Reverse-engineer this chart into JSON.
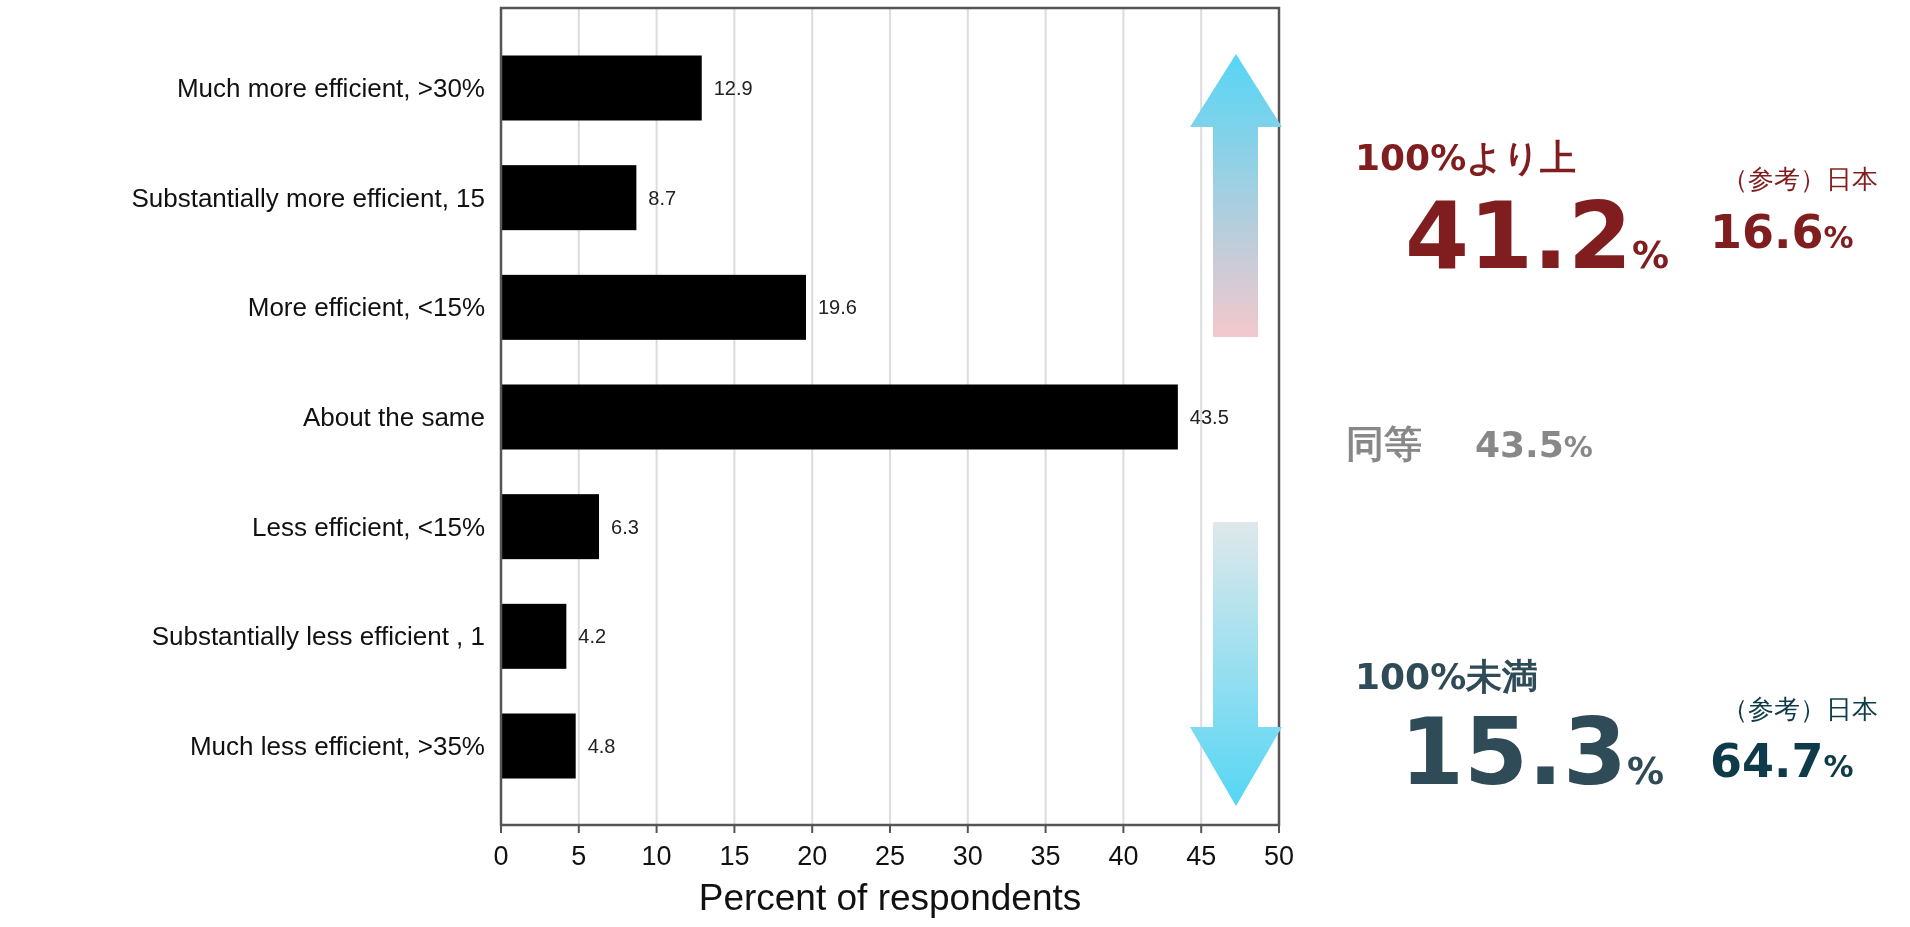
{
  "chart_data": {
    "type": "bar",
    "orientation": "horizontal",
    "categories": [
      "Much more efficient, >30%",
      "Substantially more efficient, 15",
      "More efficient, <15%",
      "About the same",
      "Less efficient, <15%",
      "Substantially less efficient , 1",
      "Much less efficient, >35%"
    ],
    "values": [
      12.9,
      8.7,
      19.6,
      43.5,
      6.3,
      4.2,
      4.8
    ],
    "color": "#000000",
    "xlim": [
      0,
      50
    ],
    "xticks": [
      0,
      5,
      10,
      15,
      20,
      25,
      30,
      35,
      40,
      45,
      50
    ],
    "xlabel": "Percent of respondents",
    "grid": "x",
    "data_labels": true,
    "annotations": [
      "100%より上",
      "41.2%",
      "（参考）日本",
      "16.6%",
      "同等",
      "43.5%",
      "100%未満",
      "15.3%",
      "（参考）日本",
      "64.7%"
    ]
  }
}
